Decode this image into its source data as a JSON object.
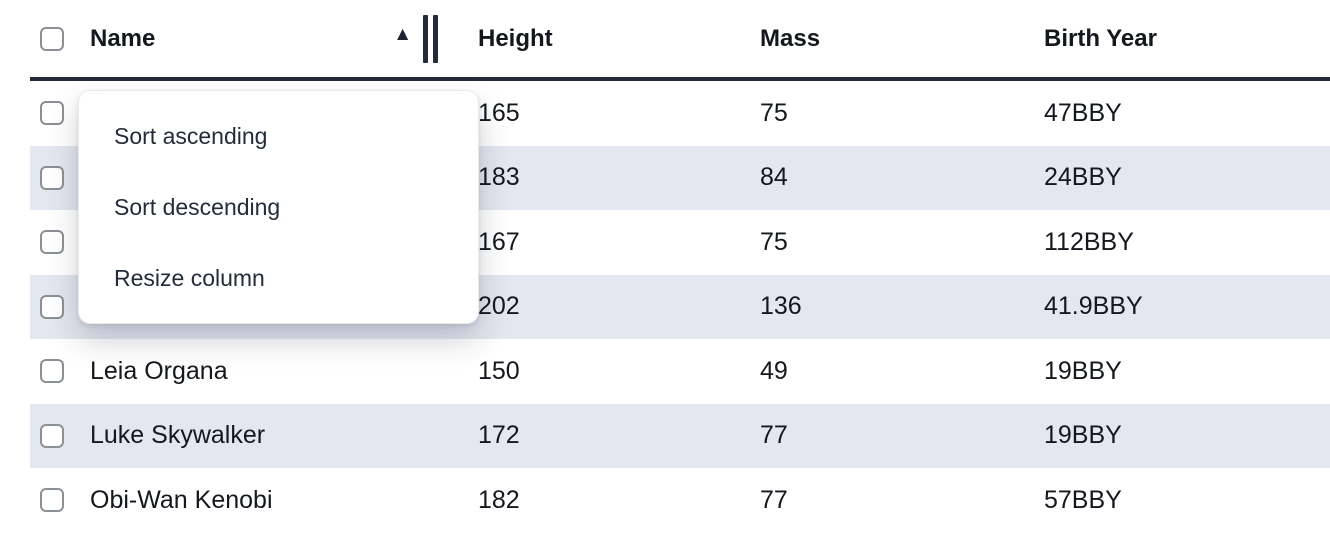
{
  "table": {
    "sort": {
      "column": "Name",
      "direction": "ascending"
    },
    "columns": [
      {
        "id": "name",
        "label": "Name"
      },
      {
        "id": "height",
        "label": "Height"
      },
      {
        "id": "mass",
        "label": "Mass"
      },
      {
        "id": "birth_year",
        "label": "Birth Year"
      }
    ],
    "rows": [
      {
        "name": "",
        "height": "165",
        "mass": "75",
        "birth_year": "47BBY"
      },
      {
        "name": "",
        "height": "183",
        "mass": "84",
        "birth_year": "24BBY"
      },
      {
        "name": "",
        "height": "167",
        "mass": "75",
        "birth_year": "112BBY"
      },
      {
        "name": "",
        "height": "202",
        "mass": "136",
        "birth_year": "41.9BBY"
      },
      {
        "name": "Leia Organa",
        "height": "150",
        "mass": "49",
        "birth_year": "19BBY"
      },
      {
        "name": "Luke Skywalker",
        "height": "172",
        "mass": "77",
        "birth_year": "19BBY"
      },
      {
        "name": "Obi-Wan Kenobi",
        "height": "182",
        "mass": "77",
        "birth_year": "57BBY"
      }
    ]
  },
  "column_menu": {
    "items": [
      {
        "label": "Sort ascending"
      },
      {
        "label": "Sort descending"
      },
      {
        "label": "Resize column"
      }
    ]
  },
  "icons": {
    "sort_ascending_glyph": "▲"
  },
  "colors": {
    "stripe": "#e3e7ef",
    "header_border": "#212b3a",
    "text": "#14181e",
    "menu_text": "#232c3a",
    "checkbox_border": "#8b9096"
  }
}
